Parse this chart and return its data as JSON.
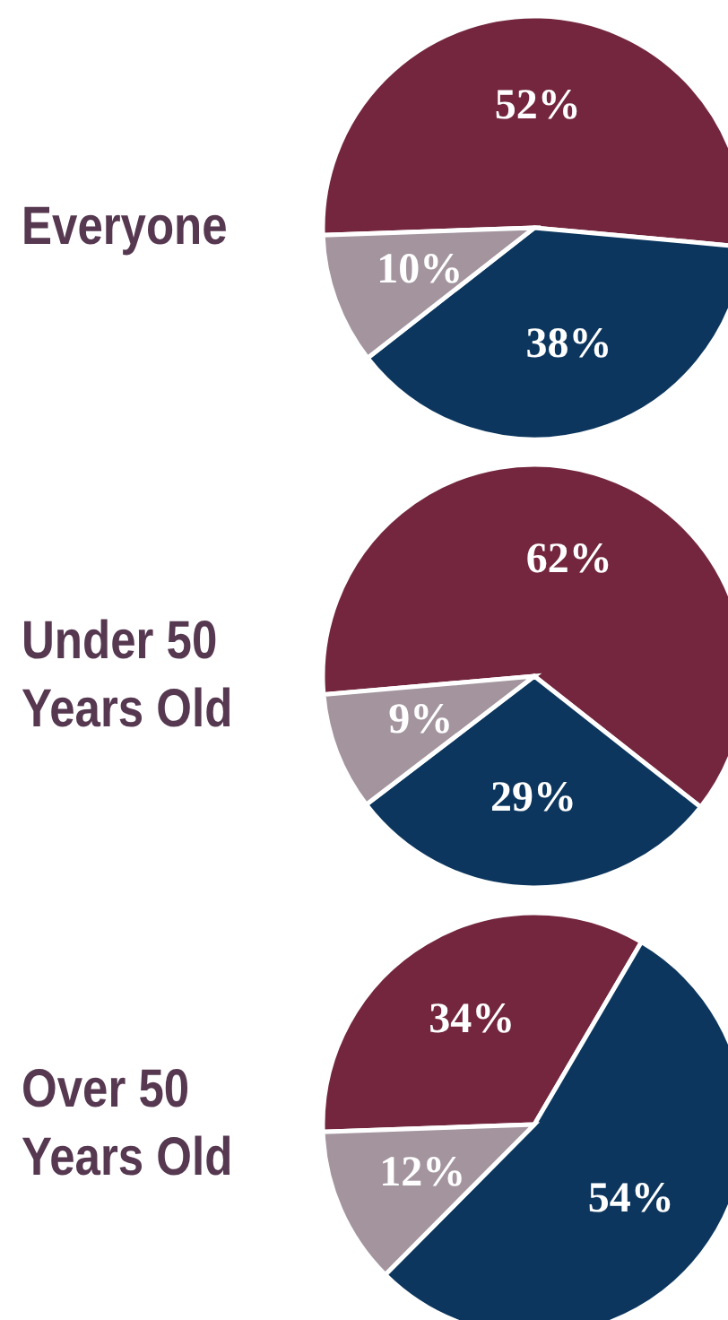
{
  "chart_data": [
    {
      "type": "pie",
      "title": "Everyone",
      "categories": [
        null,
        null,
        null
      ],
      "values": [
        52,
        38,
        10
      ],
      "colors": [
        "#73263d",
        "#0c365e",
        "#a3949e"
      ],
      "value_labels": [
        "52%",
        "38%",
        "10%"
      ]
    },
    {
      "type": "pie",
      "title": "Under 50 Years Old",
      "categories": [
        null,
        null,
        null
      ],
      "values": [
        62,
        29,
        9
      ],
      "colors": [
        "#73263d",
        "#0c365e",
        "#a3949e"
      ],
      "value_labels": [
        "62%",
        "29%",
        "9%"
      ]
    },
    {
      "type": "pie",
      "title": "Over 50 Years Old",
      "categories": [
        null,
        null,
        null
      ],
      "values": [
        34,
        54,
        12
      ],
      "colors": [
        "#73263d",
        "#0c365e",
        "#a3949e"
      ],
      "value_labels": [
        "34%",
        "54%",
        "12%"
      ]
    }
  ]
}
